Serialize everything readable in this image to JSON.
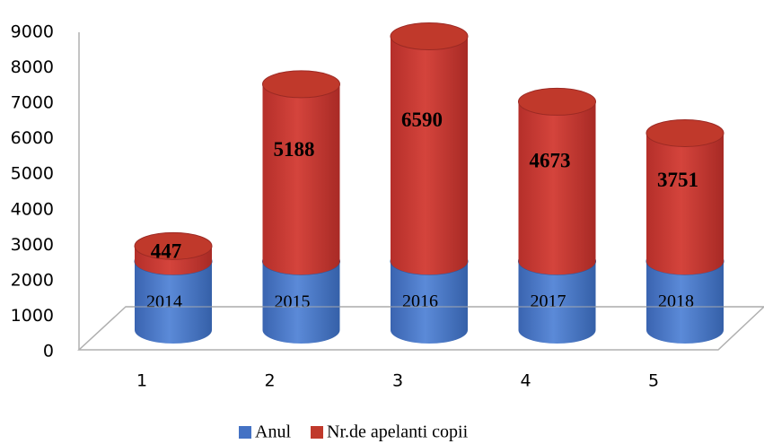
{
  "chart_data": {
    "type": "bar3d_stacked",
    "categories": [
      "1",
      "2",
      "3",
      "4",
      "5"
    ],
    "series": [
      {
        "name": "Anul",
        "color": "#4472c4",
        "values": [
          2014,
          2015,
          2016,
          2017,
          2018
        ]
      },
      {
        "name": "Nr.de apelanti copii",
        "color": "#c0392b",
        "values": [
          447,
          5188,
          6590,
          4673,
          3751
        ]
      }
    ],
    "ylim": [
      0,
      9000
    ],
    "yticks": [
      0,
      1000,
      2000,
      3000,
      4000,
      5000,
      6000,
      7000,
      8000,
      9000
    ],
    "legend": "bottom"
  }
}
